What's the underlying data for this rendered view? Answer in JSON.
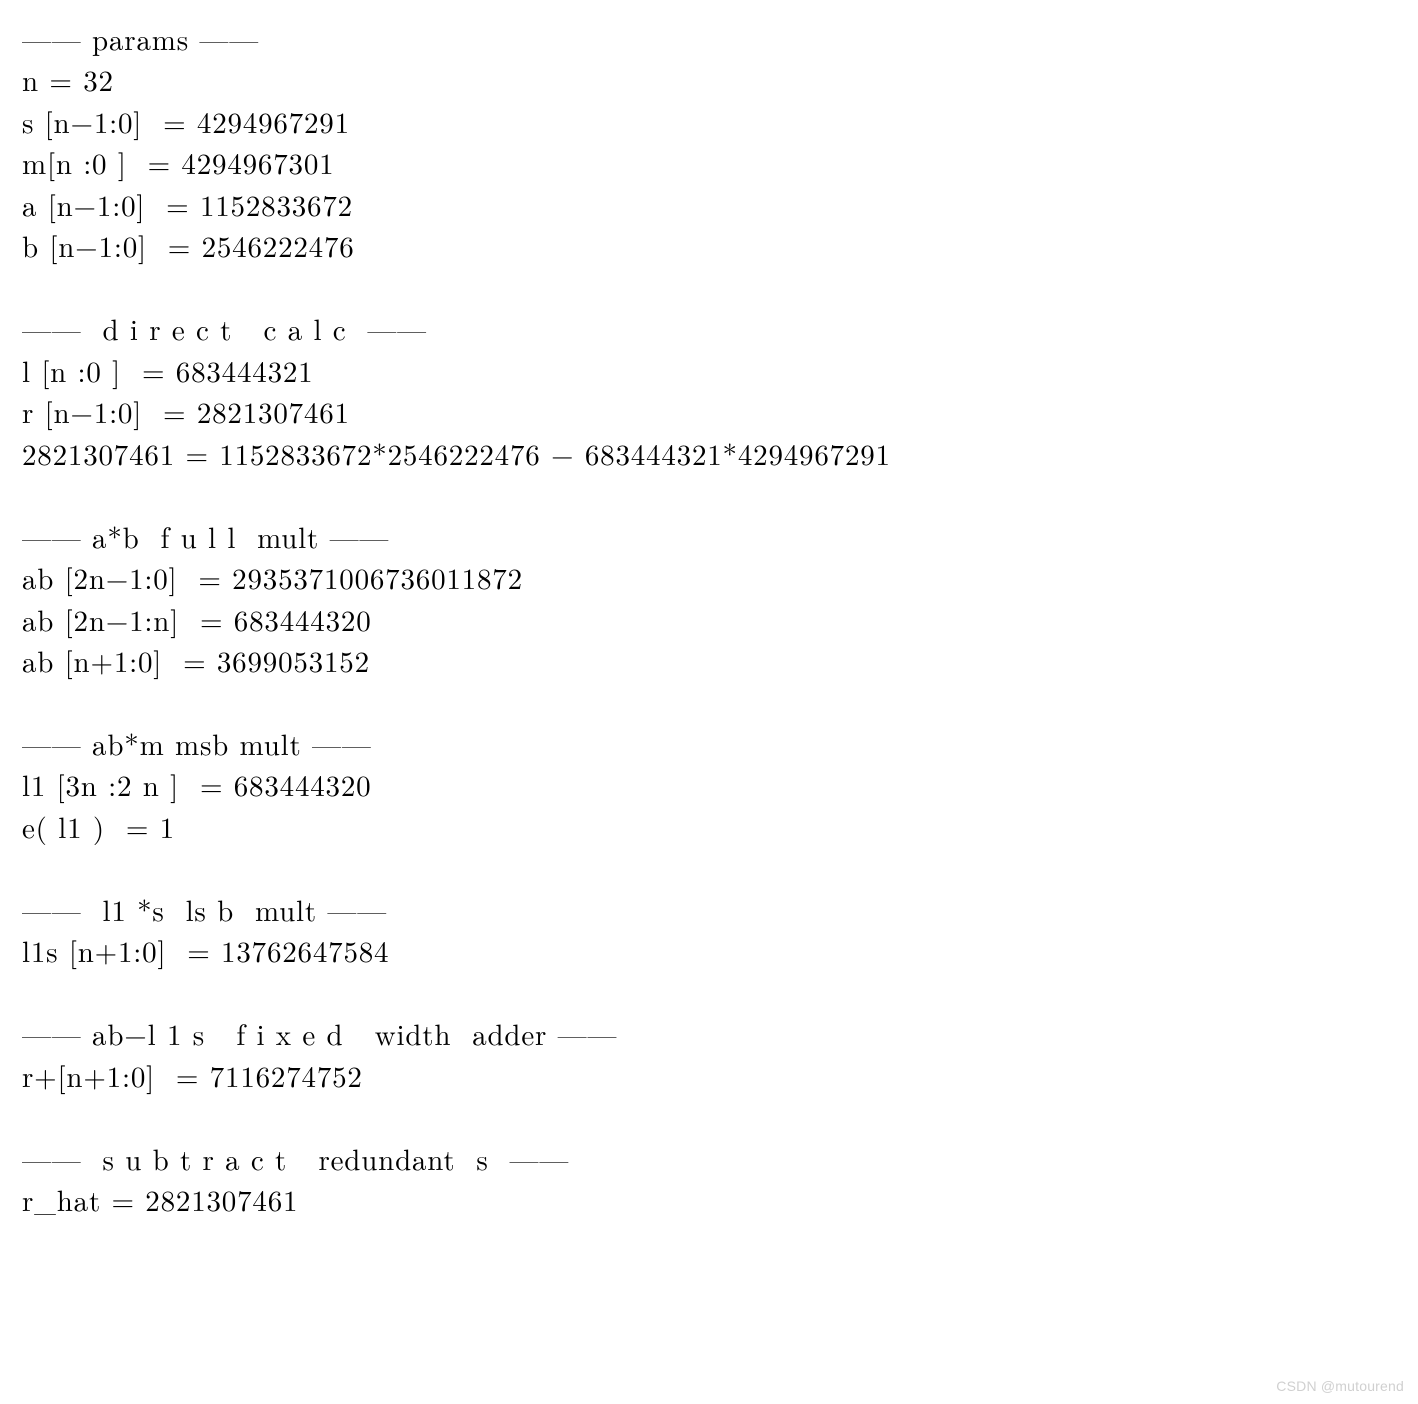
{
  "sections": {
    "params": {
      "header": "—— params ——",
      "lines": {
        "n": "n = 32",
        "s": "s [n−1:0]  = 4294967291",
        "m": "m[n :0 ]  = 4294967301",
        "a": "a [n−1:0]  = 1152833672",
        "b": "b [n−1:0]  = 2546222476"
      }
    },
    "direct": {
      "header": "——  d i r e c t   c a l c  ——",
      "lines": {
        "l": "l [n :0 ]  = 683444321",
        "r": "r [n−1:0]  = 2821307461",
        "eq": "2821307461 = 1152833672*2546222476 − 683444321*4294967291"
      }
    },
    "ab_full": {
      "header": "—— a*b  f u l l  mult ——",
      "lines": {
        "ab_full": "ab [2n−1:0]  = 2935371006736011872",
        "ab_hi": "ab [2n−1:n]  = 683444320",
        "ab_lo": "ab [n+1:0]  = 3699053152"
      }
    },
    "abm_msb": {
      "header": "—— ab*m msb mult ——",
      "lines": {
        "l1": "l1 [3n :2 n ]  = 683444320",
        "e": "e( l1 )  = 1"
      }
    },
    "l1s_lsb": {
      "header": "——  l1 *s  ls b  mult ——",
      "lines": {
        "l1s": "l1s [n+1:0]  = 13762647584"
      }
    },
    "ab_l1s_adder": {
      "header": "—— ab−l 1 s   f i x e d   width  adder ——",
      "lines": {
        "rp": "r+[n+1:0]  = 7116274752"
      }
    },
    "sub_red_s": {
      "header": "——  s u b t r a c t   redundant  s  ——",
      "lines": {
        "rhat": "r_hat = 2821307461"
      }
    }
  },
  "watermark": "CSDN @mutourend"
}
